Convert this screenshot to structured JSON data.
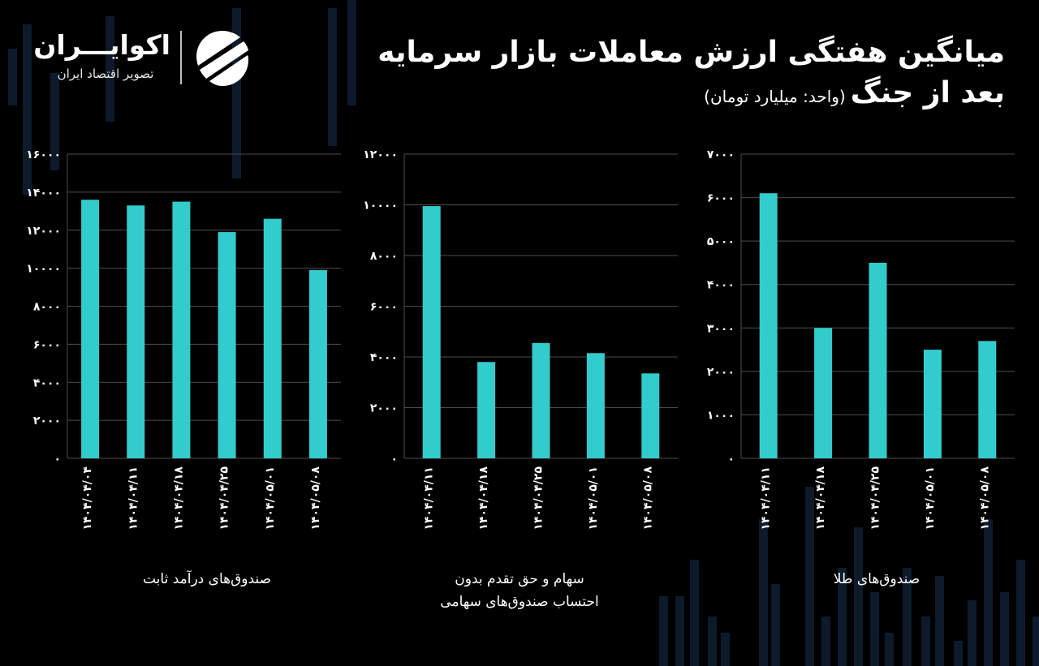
{
  "header": {
    "title_line1": "میانگین هفتگی ارزش معاملات بازار سرمایه",
    "title_line2": "بعد از جنگ",
    "unit": "(واحد: میلیارد تومان)"
  },
  "logo": {
    "name": "اکوایـــران",
    "tagline": "تصویر اقتصاد ایران",
    "icon": "ekoiran-logo-icon"
  },
  "colors": {
    "background": "#000000",
    "bar": "#33cccc",
    "grid": "#4d4d4d",
    "text": "#ffffff",
    "decor": "#0c1a2c"
  },
  "chart_data": [
    {
      "type": "bar",
      "title": "صندوق‌های درآمد ثابت",
      "categories": [
        "۱۴۰۴/۰۴/۰۴",
        "۱۴۰۴/۰۴/۱۱",
        "۱۴۰۴/۰۴/۱۸",
        "۱۴۰۴/۰۴/۲۵",
        "۱۴۰۴/۰۵/۰۱",
        "۱۴۰۴/۰۵/۰۸"
      ],
      "values": [
        13600,
        13300,
        13500,
        11900,
        12600,
        9900
      ],
      "ylim": [
        0,
        16000
      ],
      "yticks": [
        0,
        2000,
        4000,
        6000,
        8000,
        10000,
        12000,
        14000,
        16000
      ],
      "ytick_labels": [
        "۰",
        "۲۰۰۰",
        "۴۰۰۰",
        "۶۰۰۰",
        "۸۰۰۰",
        "۱۰۰۰۰",
        "۱۲۰۰۰",
        "۱۴۰۰۰",
        "۱۶۰۰۰"
      ],
      "grid": true
    },
    {
      "type": "bar",
      "title": "سهام و حق تقدم بدون احتساب صندوق‌های سهامی",
      "categories": [
        "۱۴۰۴/۰۴/۱۱",
        "۱۴۰۴/۰۴/۱۸",
        "۱۴۰۴/۰۴/۲۵",
        "۱۴۰۴/۰۵/۰۱",
        "۱۴۰۴/۰۵/۰۸"
      ],
      "values": [
        9950,
        3800,
        4550,
        4150,
        3350
      ],
      "ylim": [
        0,
        12000
      ],
      "yticks": [
        0,
        2000,
        4000,
        6000,
        8000,
        10000,
        12000
      ],
      "ytick_labels": [
        "۰",
        "۲۰۰۰",
        "۴۰۰۰",
        "۶۰۰۰",
        "۸۰۰۰",
        "۱۰۰۰۰",
        "۱۲۰۰۰"
      ],
      "grid": true
    },
    {
      "type": "bar",
      "title": "صندوق‌های طلا",
      "categories": [
        "۱۴۰۴/۰۴/۱۱",
        "۱۴۰۴/۰۴/۱۸",
        "۱۴۰۴/۰۴/۲۵",
        "۱۴۰۴/۰۵/۰۱",
        "۱۴۰۴/۰۵/۰۸"
      ],
      "values": [
        6100,
        3000,
        4500,
        2500,
        2700
      ],
      "ylim": [
        0,
        7000
      ],
      "yticks": [
        0,
        1000,
        2000,
        3000,
        4000,
        5000,
        6000,
        7000
      ],
      "ytick_labels": [
        "۰",
        "۱۰۰۰",
        "۲۰۰۰",
        "۳۰۰۰",
        "۴۰۰۰",
        "۵۰۰۰",
        "۶۰۰۰",
        "۷۰۰۰"
      ],
      "grid": true
    }
  ]
}
